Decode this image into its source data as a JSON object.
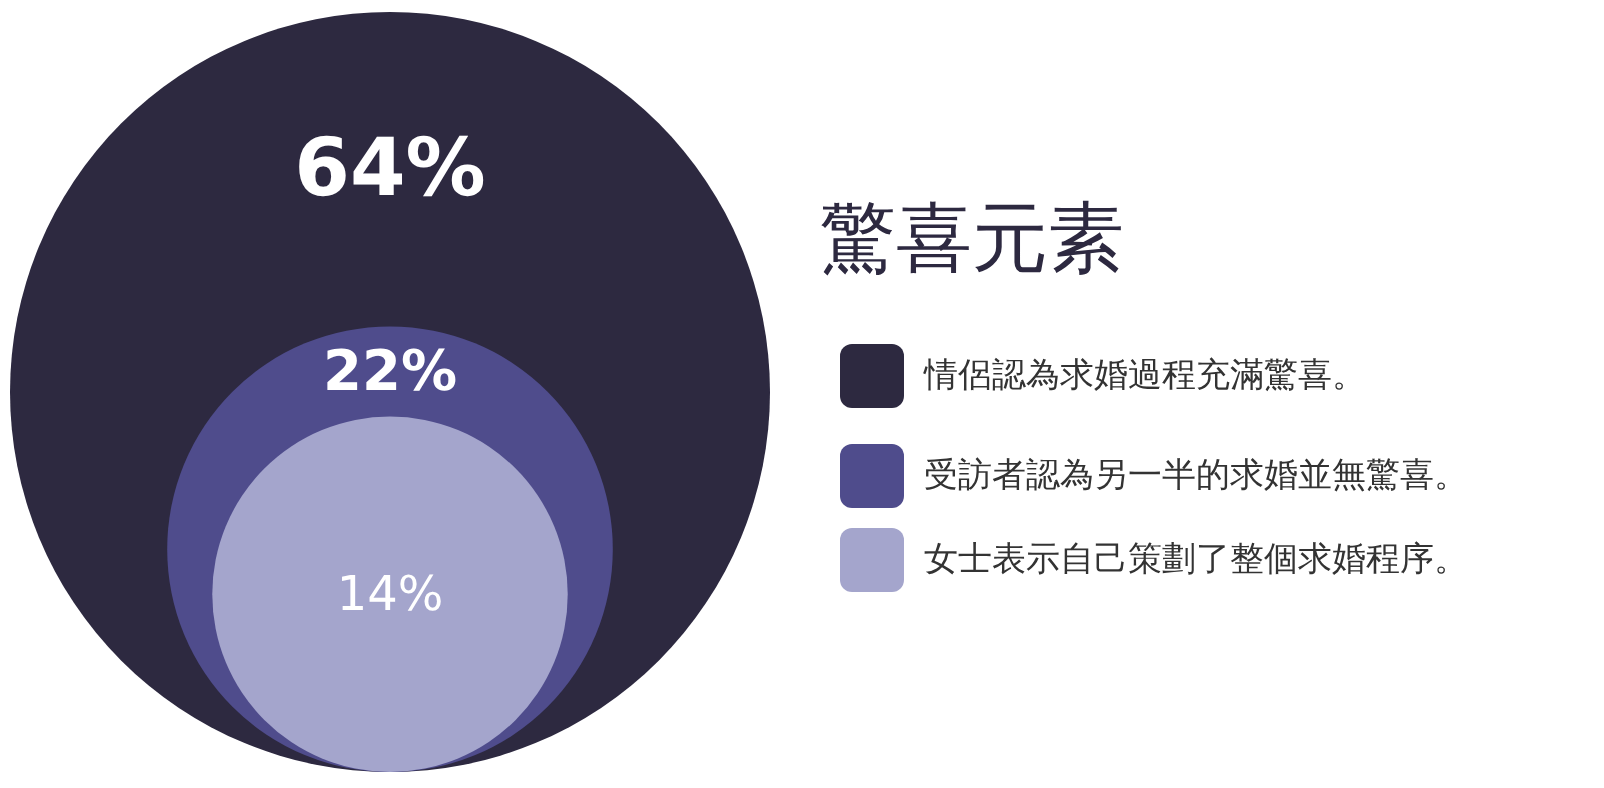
{
  "chart_data": {
    "type": "other",
    "title": "驚喜元素",
    "categories": [
      "情侶認為求婚過程充滿驚喜。",
      "受訪者認為另一半的求婚並無驚喜。",
      "女士表示自己策劃了整個求婚程序。"
    ],
    "values": [
      64,
      22,
      14
    ],
    "colors": [
      "#2d2940",
      "#4f4c8c",
      "#a4a5cc"
    ],
    "value_labels": [
      "64%",
      "22%",
      "14%"
    ]
  }
}
